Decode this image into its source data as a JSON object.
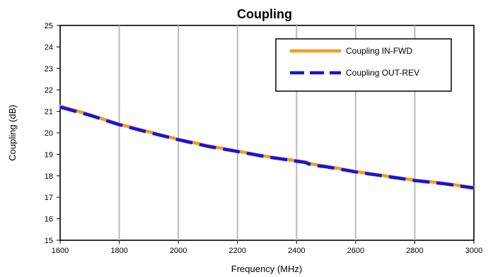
{
  "chart_data": {
    "type": "line",
    "title": "Coupling",
    "xlabel": "Frequency (MHz)",
    "ylabel": "Coupling (dB)",
    "xlim": [
      1600,
      3000
    ],
    "ylim": [
      15,
      25
    ],
    "x_ticks": [
      1600,
      1800,
      2000,
      2200,
      2400,
      2600,
      2800,
      3000
    ],
    "y_ticks": [
      15,
      16,
      17,
      18,
      19,
      20,
      21,
      22,
      23,
      24,
      25
    ],
    "grid": "vertical",
    "legend_position": "top-right",
    "series": [
      {
        "name": "Coupling IN-FWD",
        "color": "#F59B1A",
        "style": "solid",
        "x": [
          1600,
          1700,
          1800,
          1900,
          2000,
          2100,
          2200,
          2300,
          2400,
          2430,
          2450,
          2500,
          2600,
          2700,
          2800,
          2900,
          3000
        ],
        "y": [
          21.25,
          20.85,
          20.4,
          20.05,
          19.7,
          19.4,
          19.15,
          18.9,
          18.7,
          18.65,
          18.55,
          18.45,
          18.2,
          18.0,
          17.8,
          17.65,
          17.45
        ]
      },
      {
        "name": "Coupling OUT-REV",
        "color": "#1212E8",
        "style": "dashed",
        "x": [
          1600,
          1700,
          1800,
          1900,
          2000,
          2100,
          2200,
          2300,
          2400,
          2430,
          2450,
          2500,
          2600,
          2700,
          2800,
          2900,
          3000
        ],
        "y": [
          21.2,
          20.82,
          20.38,
          20.02,
          19.68,
          19.37,
          19.13,
          18.88,
          18.68,
          18.62,
          18.5,
          18.42,
          18.18,
          17.98,
          17.78,
          17.63,
          17.43
        ]
      }
    ]
  }
}
